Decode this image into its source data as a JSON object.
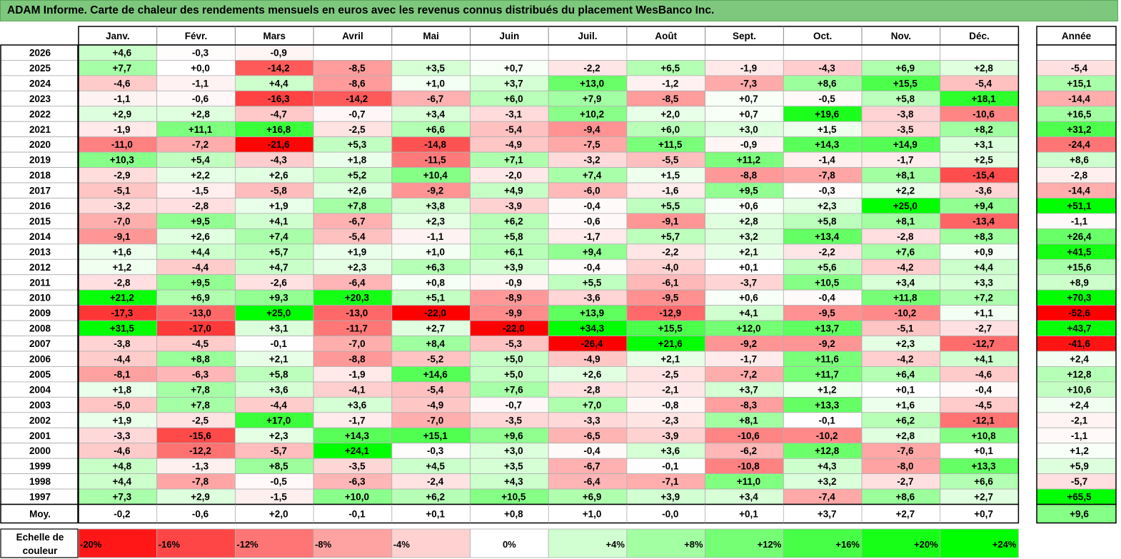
{
  "title": "ADAM Informe. Carte de chaleur des rendements mensuels en euros avec les revenus connus distribués du placement WesBanco Inc.",
  "chart_data": {
    "type": "heatmap",
    "title": "ADAM Informe. Carte de chaleur des rendements mensuels en euros avec les revenus connus distribués du placement WesBanco Inc.",
    "months": [
      "Janv.",
      "Févr.",
      "Mars",
      "Avril",
      "Mai",
      "Juin",
      "Juil.",
      "Août",
      "Sept.",
      "Oct.",
      "Nov.",
      "Déc."
    ],
    "year_header": "Année",
    "rows": [
      {
        "label": "2026",
        "values": [
          "+4,6",
          "-0,3",
          "-0,9",
          "",
          "",
          "",
          "",
          "",
          "",
          "",
          "",
          ""
        ],
        "year": ""
      },
      {
        "label": "2025",
        "values": [
          "+7,7",
          "+0,0",
          "-14,2",
          "-8,5",
          "+3,5",
          "+0,7",
          "-2,2",
          "+6,5",
          "-1,9",
          "-4,3",
          "+6,9",
          "+2,8"
        ],
        "year": "-5,4"
      },
      {
        "label": "2024",
        "values": [
          "-4,6",
          "-1,1",
          "+4,4",
          "-8,6",
          "+1,0",
          "+3,7",
          "+13,0",
          "-1,2",
          "-7,3",
          "+8,6",
          "+15,5",
          "-5,4"
        ],
        "year": "+15,1"
      },
      {
        "label": "2023",
        "values": [
          "-1,1",
          "-0,6",
          "-16,3",
          "-14,2",
          "-6,7",
          "+6,0",
          "+7,9",
          "-8,5",
          "+0,7",
          "-0,5",
          "+5,8",
          "+18,1"
        ],
        "year": "-14,4"
      },
      {
        "label": "2022",
        "values": [
          "+2,9",
          "+2,8",
          "-4,7",
          "-0,7",
          "+3,4",
          "-3,1",
          "+10,2",
          "+2,0",
          "+0,7",
          "+19,6",
          "-3,8",
          "-10,6"
        ],
        "year": "+16,5"
      },
      {
        "label": "2021",
        "values": [
          "-1,9",
          "+11,1",
          "+16,8",
          "-2,5",
          "+6,6",
          "-5,4",
          "-9,4",
          "+6,0",
          "+3,0",
          "+1,5",
          "-3,5",
          "+8,2"
        ],
        "year": "+31,2"
      },
      {
        "label": "2020",
        "values": [
          "-11,0",
          "-7,2",
          "-21,6",
          "+5,3",
          "-14,8",
          "-4,9",
          "-7,5",
          "+11,5",
          "-0,9",
          "+14,3",
          "+14,9",
          "+3,1"
        ],
        "year": "-24,4"
      },
      {
        "label": "2019",
        "values": [
          "+10,3",
          "+5,4",
          "-4,3",
          "+1,8",
          "-11,5",
          "+7,1",
          "-3,2",
          "-5,5",
          "+11,2",
          "-1,4",
          "-1,7",
          "+2,5"
        ],
        "year": "+8,6"
      },
      {
        "label": "2018",
        "values": [
          "-2,9",
          "+2,2",
          "+2,6",
          "+5,2",
          "+10,4",
          "-2,0",
          "+7,4",
          "+1,5",
          "-8,8",
          "-7,8",
          "+8,1",
          "-15,4"
        ],
        "year": "-2,8"
      },
      {
        "label": "2017",
        "values": [
          "-5,1",
          "-1,5",
          "-5,8",
          "+2,6",
          "-9,2",
          "+4,9",
          "-6,0",
          "-1,6",
          "+9,5",
          "-0,3",
          "+2,2",
          "-3,6"
        ],
        "year": "-14,4"
      },
      {
        "label": "2016",
        "values": [
          "-3,2",
          "-2,8",
          "+1,9",
          "+7,8",
          "+3,8",
          "-3,9",
          "-0,4",
          "+5,5",
          "+0,6",
          "+2,3",
          "+25,0",
          "+9,4"
        ],
        "year": "+51,1"
      },
      {
        "label": "2015",
        "values": [
          "-7,0",
          "+9,5",
          "+4,1",
          "-6,7",
          "+2,3",
          "+6,2",
          "-0,6",
          "-9,1",
          "+2,8",
          "+5,8",
          "+8,1",
          "-13,4"
        ],
        "year": "-1,1"
      },
      {
        "label": "2014",
        "values": [
          "-9,1",
          "+2,6",
          "+7,4",
          "-5,4",
          "-1,1",
          "+5,8",
          "-1,7",
          "+5,7",
          "+3,2",
          "+13,4",
          "-2,8",
          "+8,3"
        ],
        "year": "+26,4"
      },
      {
        "label": "2013",
        "values": [
          "+1,6",
          "+4,4",
          "+5,7",
          "+1,9",
          "+1,0",
          "+6,1",
          "+9,4",
          "-2,2",
          "+2,1",
          "-2,2",
          "+7,6",
          "+0,9"
        ],
        "year": "+41,5"
      },
      {
        "label": "2012",
        "values": [
          "+1,2",
          "-4,4",
          "+4,7",
          "+2,3",
          "+6,3",
          "+3,9",
          "-0,4",
          "-4,0",
          "+0,1",
          "+5,6",
          "-4,2",
          "+4,4"
        ],
        "year": "+15,6"
      },
      {
        "label": "2011",
        "values": [
          "-2,8",
          "+9,5",
          "-2,6",
          "-6,4",
          "+0,8",
          "-0,9",
          "+5,5",
          "-6,1",
          "-3,7",
          "+10,5",
          "+3,4",
          "+3,3"
        ],
        "year": "+8,9"
      },
      {
        "label": "2010",
        "values": [
          "+21,2",
          "+6,9",
          "+9,3",
          "+20,3",
          "+5,1",
          "-8,9",
          "-3,6",
          "-9,5",
          "+0,6",
          "-0,4",
          "+11,8",
          "+7,2"
        ],
        "year": "+70,3"
      },
      {
        "label": "2009",
        "values": [
          "-17,3",
          "-13,0",
          "+25,0",
          "-13,0",
          "-22,0",
          "-9,9",
          "+13,9",
          "-12,9",
          "+4,1",
          "-9,5",
          "-10,2",
          "+1,1"
        ],
        "year": "-52,6"
      },
      {
        "label": "2008",
        "values": [
          "+31,5",
          "-17,0",
          "+3,1",
          "-11,7",
          "+2,7",
          "-22,0",
          "+34,3",
          "+15,5",
          "+12,0",
          "+13,7",
          "-5,1",
          "-2,7"
        ],
        "year": "+43,7"
      },
      {
        "label": "2007",
        "values": [
          "-3,8",
          "-4,5",
          "-0,1",
          "-7,0",
          "+8,4",
          "-5,3",
          "-26,4",
          "+21,6",
          "-9,2",
          "-9,2",
          "+2,3",
          "-12,7"
        ],
        "year": "-41,6"
      },
      {
        "label": "2006",
        "values": [
          "-4,4",
          "+8,8",
          "+2,1",
          "-8,8",
          "-5,2",
          "+5,0",
          "-4,9",
          "+2,1",
          "-1,7",
          "+11,6",
          "-4,2",
          "+4,1"
        ],
        "year": "+2,4"
      },
      {
        "label": "2005",
        "values": [
          "-8,1",
          "-6,3",
          "+5,8",
          "-1,9",
          "+14,6",
          "+5,0",
          "+2,6",
          "-2,5",
          "-7,2",
          "+11,7",
          "+6,4",
          "-4,6"
        ],
        "year": "+12,8"
      },
      {
        "label": "2004",
        "values": [
          "+1,8",
          "+7,8",
          "+3,6",
          "-4,1",
          "-5,4",
          "+7,6",
          "-2,8",
          "-2,1",
          "+3,7",
          "+1,2",
          "+0,1",
          "-0,4"
        ],
        "year": "+10,6"
      },
      {
        "label": "2003",
        "values": [
          "-5,0",
          "+7,8",
          "-4,4",
          "+3,6",
          "-4,9",
          "-0,7",
          "+7,0",
          "-0,8",
          "-8,3",
          "+13,3",
          "+1,6",
          "-4,5"
        ],
        "year": "+2,4"
      },
      {
        "label": "2002",
        "values": [
          "+1,9",
          "-2,5",
          "+17,0",
          "-1,7",
          "-7,0",
          "-3,5",
          "-3,3",
          "-2,3",
          "+8,1",
          "-0,1",
          "+6,2",
          "-12,1"
        ],
        "year": "-2,1"
      },
      {
        "label": "2001",
        "values": [
          "-3,3",
          "-15,6",
          "+2,3",
          "+14,3",
          "+15,1",
          "+9,6",
          "-6,5",
          "-3,9",
          "-10,6",
          "-10,2",
          "+2,8",
          "+10,8"
        ],
        "year": "-1,1"
      },
      {
        "label": "2000",
        "values": [
          "-4,6",
          "-12,2",
          "-5,7",
          "+24,1",
          "-0,3",
          "+3,0",
          "-0,4",
          "+3,6",
          "-6,2",
          "+12,8",
          "-7,6",
          "+0,1"
        ],
        "year": "+1,2"
      },
      {
        "label": "1999",
        "values": [
          "+4,8",
          "-1,3",
          "+8,5",
          "-3,5",
          "+4,5",
          "+3,5",
          "-6,7",
          "-0,1",
          "-10,8",
          "+4,3",
          "-8,0",
          "+13,3"
        ],
        "year": "+5,9"
      },
      {
        "label": "1998",
        "values": [
          "+4,4",
          "-7,8",
          "-0,5",
          "-6,3",
          "-2,4",
          "+4,3",
          "-6,4",
          "-7,1",
          "+11,0",
          "+3,2",
          "-2,7",
          "+6,6"
        ],
        "year": "-5,7"
      },
      {
        "label": "1997",
        "values": [
          "+7,3",
          "+2,9",
          "-1,5",
          "+10,0",
          "+6,2",
          "+10,5",
          "+6,9",
          "+3,9",
          "+3,4",
          "-7,4",
          "+8,6",
          "+2,7"
        ],
        "year": "+65,5"
      }
    ],
    "average": {
      "label": "Moy.",
      "values": [
        "-0,2",
        "-0,6",
        "+2,0",
        "-0,1",
        "+0,1",
        "+0,8",
        "+1,0",
        "-0,0",
        "+0,1",
        "+3,7",
        "+2,7",
        "+0,7"
      ],
      "year": "+9,6"
    },
    "scale": {
      "label_line1": "Echelle de",
      "label_line2": "couleur",
      "labels": [
        "-20%",
        "-16%",
        "-12%",
        "-8%",
        "-4%",
        "0%",
        "+4%",
        "+8%",
        "+12%",
        "+16%",
        "+20%",
        "+24%"
      ],
      "values": [
        -20,
        -16,
        -12,
        -8,
        -4,
        0,
        4,
        8,
        12,
        16,
        20,
        24
      ]
    },
    "colors": {
      "negative_max": "#ff0000",
      "positive_max": "#00ff00",
      "neutral": "#ffffff",
      "title_bar": "#7dc87d"
    }
  }
}
